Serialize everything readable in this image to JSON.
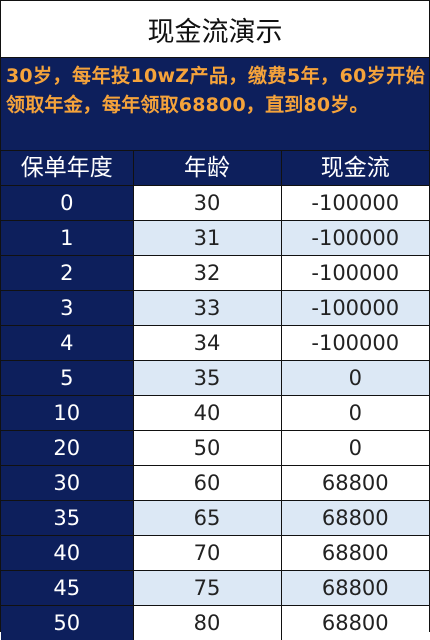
{
  "title": "现金流演示",
  "note": "30岁，每年投10wZ产品，缴费5年，60岁开始领取年金，每年领取68800，直到80岁。",
  "table": {
    "headers": [
      "保单年度",
      "年龄",
      "现金流"
    ],
    "rows": [
      {
        "year": "0",
        "age": "30",
        "cashflow": "-100000"
      },
      {
        "year": "1",
        "age": "31",
        "cashflow": "-100000"
      },
      {
        "year": "2",
        "age": "32",
        "cashflow": "-100000"
      },
      {
        "year": "3",
        "age": "33",
        "cashflow": "-100000"
      },
      {
        "year": "4",
        "age": "34",
        "cashflow": "-100000"
      },
      {
        "year": "5",
        "age": "35",
        "cashflow": "0"
      },
      {
        "year": "10",
        "age": "40",
        "cashflow": "0"
      },
      {
        "year": "20",
        "age": "50",
        "cashflow": "0"
      },
      {
        "year": "30",
        "age": "60",
        "cashflow": "68800"
      },
      {
        "year": "35",
        "age": "65",
        "cashflow": "68800"
      },
      {
        "year": "40",
        "age": "70",
        "cashflow": "68800"
      },
      {
        "year": "45",
        "age": "75",
        "cashflow": "68800"
      },
      {
        "year": "50",
        "age": "80",
        "cashflow": "68800"
      }
    ]
  },
  "colors": {
    "navy": "#0d1f5c",
    "orange": "#f5a33b",
    "alt_row": "#dce8f5"
  }
}
